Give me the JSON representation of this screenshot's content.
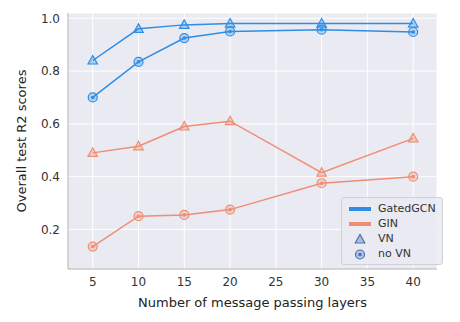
{
  "chart_data": {
    "type": "line",
    "xlabel": "Number of message passing layers",
    "ylabel": "Overall test R2 scores",
    "x": [
      5,
      10,
      15,
      20,
      30,
      40
    ],
    "xlim": [
      2.3,
      42.6
    ],
    "xticks": [
      5,
      10,
      15,
      20,
      25,
      30,
      35,
      40
    ],
    "ylim": [
      0.05,
      1.02
    ],
    "yticks": [
      0.2,
      0.4,
      0.6,
      0.8,
      {
        "value": 1,
        "label": "1.0"
      }
    ],
    "grid": true,
    "legend": "lower right",
    "series": [
      {
        "name": "GatedGCN",
        "color": "#2e8ee6",
        "marker": "triangle",
        "values": [
          0.84,
          0.96,
          0.975,
          0.98,
          0.98,
          0.98
        ]
      },
      {
        "name": "GatedGCN",
        "color": "#2e8ee6",
        "marker": "circle",
        "values": [
          0.7,
          0.835,
          0.925,
          0.95,
          0.957,
          0.948
        ]
      },
      {
        "name": "GIN",
        "color": "#ee8e73",
        "marker": "triangle",
        "values": [
          0.49,
          0.515,
          0.59,
          0.61,
          0.415,
          0.545
        ]
      },
      {
        "name": "GIN",
        "color": "#ee8e73",
        "marker": "circle",
        "values": [
          0.135,
          0.25,
          0.255,
          0.275,
          0.375,
          0.4
        ]
      }
    ],
    "marker_legend": [
      {
        "name": "VN",
        "marker": "triangle"
      },
      {
        "name": "no VN",
        "marker": "circle"
      }
    ]
  }
}
